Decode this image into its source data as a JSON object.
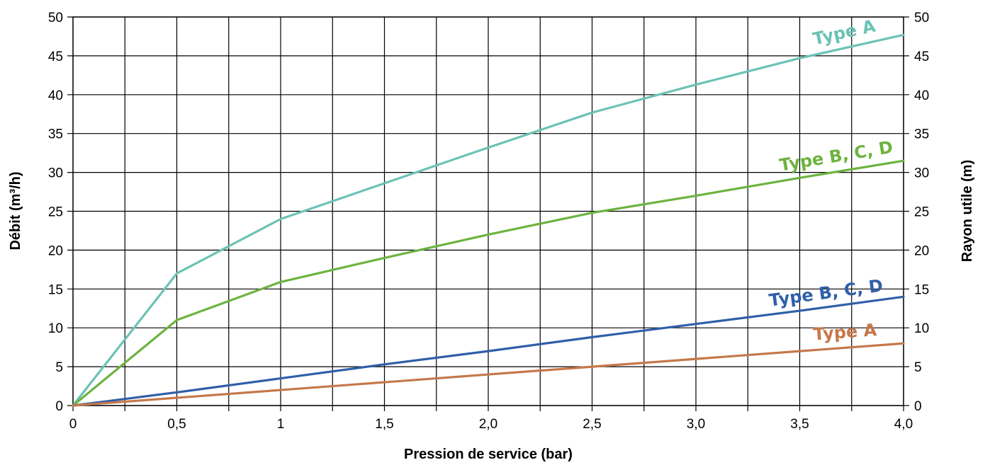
{
  "chart_data": {
    "type": "line",
    "title": "",
    "xlabel": "Pression de service (bar)",
    "ylabel_left": "Débit (m³/h)",
    "ylabel_right": "Rayon utile (m)",
    "xlim": [
      0,
      4
    ],
    "ylim": [
      0,
      50
    ],
    "grid": true,
    "x_ticks": [
      {
        "value": 0,
        "label": "0"
      },
      {
        "value": 0.5,
        "label": "0,5"
      },
      {
        "value": 1,
        "label": "1"
      },
      {
        "value": 1.5,
        "label": "1,5"
      },
      {
        "value": 2,
        "label": "2,0"
      },
      {
        "value": 2.5,
        "label": "2,5"
      },
      {
        "value": 3,
        "label": "3,0"
      },
      {
        "value": 3.5,
        "label": "3,5"
      },
      {
        "value": 4,
        "label": "4,0"
      }
    ],
    "y_ticks": [
      0,
      5,
      10,
      15,
      20,
      25,
      30,
      35,
      40,
      45,
      50
    ],
    "series": [
      {
        "name": "Type A",
        "color": "#6cc2b5",
        "x": [
          0,
          0.5,
          1,
          1.5,
          2,
          2.5,
          3,
          3.5,
          4
        ],
        "y": [
          0,
          17,
          24,
          28.6,
          33.2,
          37.7,
          41.3,
          44.7,
          47.7
        ]
      },
      {
        "name": "Type B, C, D",
        "color": "#6db33f",
        "x": [
          0,
          0.5,
          1,
          1.5,
          2,
          2.5,
          3,
          3.5,
          4
        ],
        "y": [
          0,
          11,
          15.9,
          19,
          22,
          24.8,
          27,
          29.3,
          31.5
        ]
      },
      {
        "name": "Type B, C, D",
        "color": "#2f5fa8",
        "x": [
          0,
          0.5,
          1,
          1.5,
          2,
          2.5,
          3,
          3.5,
          4
        ],
        "y": [
          0,
          1.7,
          3.5,
          5.3,
          7,
          8.8,
          10.5,
          12.2,
          14
        ]
      },
      {
        "name": "Type A",
        "color": "#c5784a",
        "x": [
          0,
          0.5,
          1,
          1.5,
          2,
          2.5,
          3,
          3.5,
          4
        ],
        "y": [
          0,
          1,
          2,
          3,
          4,
          5,
          6,
          7,
          8
        ]
      }
    ]
  }
}
